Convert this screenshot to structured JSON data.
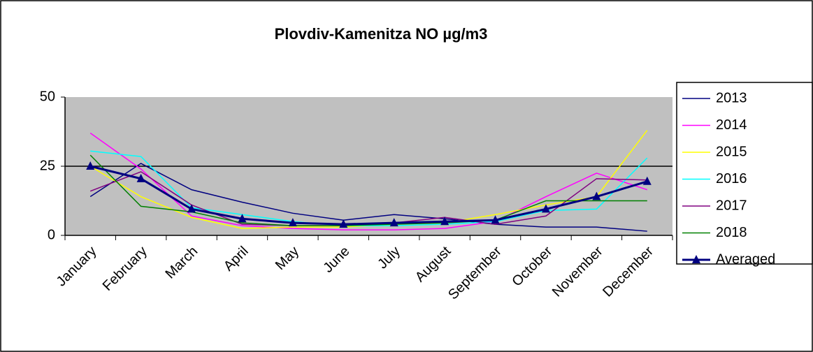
{
  "chart_data": {
    "type": "line",
    "title": "Plovdiv-Kamenitza NO µg/m3",
    "categories": [
      "January",
      "February",
      "March",
      "April",
      "May",
      "June",
      "July",
      "August",
      "September",
      "October",
      "November",
      "December"
    ],
    "series": [
      {
        "name": "2013",
        "color": "#000080",
        "values": [
          14,
          26,
          16.5,
          12,
          8,
          5.5,
          7.5,
          6,
          4,
          3,
          3,
          1.5
        ]
      },
      {
        "name": "2014",
        "color": "#ff00ff",
        "values": [
          37,
          24,
          7,
          3.5,
          2.5,
          2,
          2,
          2.5,
          5,
          14,
          22.5,
          16.5
        ]
      },
      {
        "name": "2015",
        "color": "#ffff00",
        "values": [
          25,
          14,
          6.5,
          2.5,
          3,
          3,
          4,
          4.5,
          7.5,
          11,
          14,
          38
        ]
      },
      {
        "name": "2016",
        "color": "#00ffff",
        "values": [
          30.5,
          28.5,
          10,
          7.5,
          5,
          3.5,
          3.5,
          4,
          5,
          9,
          9.5,
          28
        ]
      },
      {
        "name": "2017",
        "color": "#800080",
        "values": [
          16,
          23,
          11,
          4,
          3.5,
          3.5,
          4.5,
          6.5,
          4,
          7,
          20.5,
          20
        ]
      },
      {
        "name": "2018",
        "color": "#008000",
        "values": [
          29,
          10.5,
          8.5,
          4.5,
          3.5,
          3.5,
          4,
          4.5,
          5.5,
          12.5,
          12.5,
          12.5
        ]
      },
      {
        "name": "Averaged",
        "color": "#000080",
        "values": [
          25,
          20.5,
          9.5,
          6,
          4.5,
          4,
          4.5,
          5,
          5.5,
          9.5,
          14,
          19.5
        ]
      }
    ],
    "ylim": [
      0,
      50
    ],
    "yticks": [
      0,
      25,
      50
    ],
    "grid": true,
    "legend": "right"
  }
}
